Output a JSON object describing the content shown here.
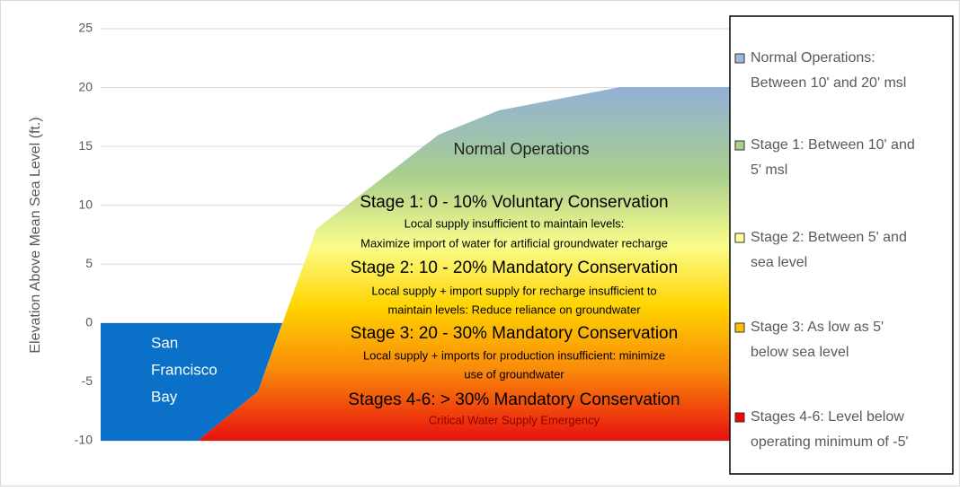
{
  "chart_data": {
    "type": "area",
    "ylabel": "Elevation Above Mean Sea Level (ft.)",
    "ylim": [
      -10,
      25
    ],
    "yticks": [
      -10,
      -5,
      0,
      5,
      10,
      15,
      20,
      25
    ],
    "grid": true,
    "bay_label": [
      "San",
      "Francisco",
      "Bay"
    ],
    "annotations": [
      "Normal Operations",
      "Stage 1: 0 - 10% Voluntary Conservation",
      "Local supply insufficient to maintain levels:",
      "Maximize import of water for artificial groundwater recharge",
      "Stage 2: 10 - 20% Mandatory Conservation",
      "Local supply + import supply for recharge insufficient to",
      "maintain levels: Reduce reliance on groundwater",
      "Stage 3: 20 - 30% Mandatory Conservation",
      "Local supply + imports for production insufficient: minimize",
      "use of groundwater",
      "Stages 4-6: > 30% Mandatory Conservation",
      "Critical Water Supply Emergency"
    ],
    "legend": [
      {
        "lines": [
          "Normal Operations:",
          "Between 10' and 20' msl"
        ],
        "color": "#9dbad8"
      },
      {
        "lines": [
          "Stage 1: Between 10' and",
          "5' msl"
        ],
        "color": "#a9d18e"
      },
      {
        "lines": [
          "Stage 2: Between 5' and",
          "sea level"
        ],
        "color": "#ffff99"
      },
      {
        "lines": [
          "Stage 3: As low as 5'",
          "below sea level"
        ],
        "color": "#ffc000"
      },
      {
        "lines": [
          "Stages 4-6: Level below",
          "operating minimum of -5'"
        ],
        "color": "#ff0000"
      }
    ]
  }
}
